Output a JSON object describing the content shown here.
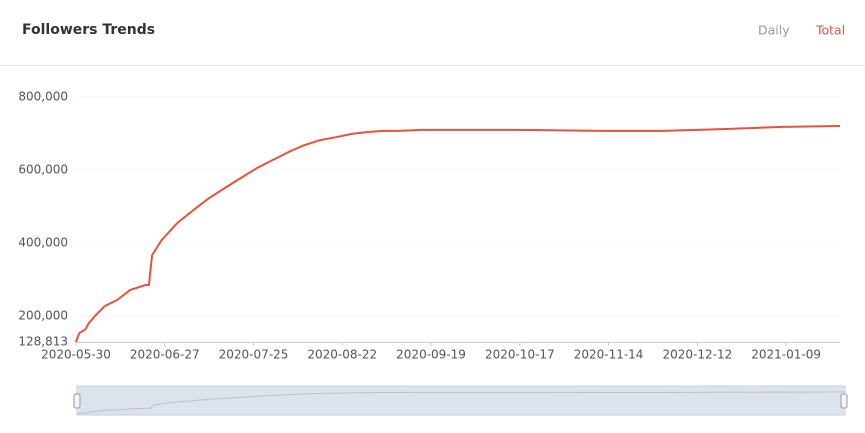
{
  "tabs": [
    "Daily",
    "Total"
  ],
  "chart_data": {
    "type": "line",
    "title": "Followers Trends",
    "x": [
      "2020-05-30",
      "2020-05-31",
      "2020-06-02",
      "2020-06-03",
      "2020-06-05",
      "2020-06-08",
      "2020-06-12",
      "2020-06-16",
      "2020-06-21",
      "2020-06-22",
      "2020-06-23",
      "2020-06-26",
      "2020-07-01",
      "2020-07-06",
      "2020-07-11",
      "2020-07-16",
      "2020-07-21",
      "2020-07-26",
      "2020-07-31",
      "2020-08-05",
      "2020-08-10",
      "2020-08-15",
      "2020-08-20",
      "2020-08-25",
      "2020-08-30",
      "2020-09-04",
      "2020-09-09",
      "2020-09-16",
      "2020-09-25",
      "2020-10-17",
      "2020-11-12",
      "2020-12-01",
      "2020-12-20",
      "2021-01-08",
      "2021-01-26"
    ],
    "series": [
      {
        "name": "Total",
        "color": "#e5533d",
        "values": [
          128813,
          153000,
          164000,
          180000,
          200000,
          227000,
          244000,
          271000,
          285000,
          285000,
          367000,
          408000,
          455000,
          490000,
          523000,
          551000,
          578000,
          605000,
          627000,
          649000,
          668000,
          682000,
          690000,
          699000,
          704000,
          707000,
          707000,
          710000,
          710000,
          710000,
          707000,
          707000,
          712000,
          718000,
          720500
        ]
      }
    ],
    "xlim": [
      "2020-05-30",
      "2021-01-26"
    ],
    "xticks": [
      "2020-05-30",
      "2020-06-27",
      "2020-07-25",
      "2020-08-22",
      "2020-09-19",
      "2020-10-17",
      "2020-11-14",
      "2020-12-12",
      "2021-01-09"
    ],
    "ylim": [
      128813,
      800000
    ],
    "yticks": [
      {
        "value": 128813,
        "label": "128,813"
      },
      {
        "value": 200000,
        "label": "200,000"
      },
      {
        "value": 400000,
        "label": "400,000"
      },
      {
        "value": 600000,
        "label": "600,000"
      },
      {
        "value": 800000,
        "label": "800,000"
      }
    ],
    "grid": true
  }
}
